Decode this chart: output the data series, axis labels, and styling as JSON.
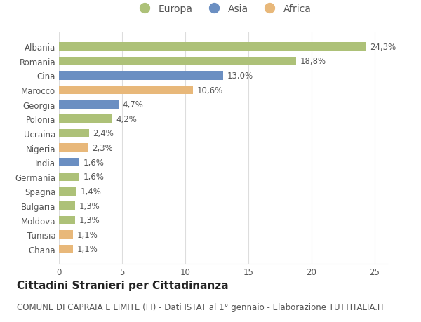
{
  "categories": [
    "Albania",
    "Romania",
    "Cina",
    "Marocco",
    "Georgia",
    "Polonia",
    "Ucraina",
    "Nigeria",
    "India",
    "Germania",
    "Spagna",
    "Bulgaria",
    "Moldova",
    "Tunisia",
    "Ghana"
  ],
  "values": [
    24.3,
    18.8,
    13.0,
    10.6,
    4.7,
    4.2,
    2.4,
    2.3,
    1.6,
    1.6,
    1.4,
    1.3,
    1.3,
    1.1,
    1.1
  ],
  "labels": [
    "24,3%",
    "18,8%",
    "13,0%",
    "10,6%",
    "4,7%",
    "4,2%",
    "2,4%",
    "2,3%",
    "1,6%",
    "1,6%",
    "1,4%",
    "1,3%",
    "1,3%",
    "1,1%",
    "1,1%"
  ],
  "continent": [
    "Europa",
    "Europa",
    "Asia",
    "Africa",
    "Asia",
    "Europa",
    "Europa",
    "Africa",
    "Asia",
    "Europa",
    "Europa",
    "Europa",
    "Europa",
    "Africa",
    "Africa"
  ],
  "colors": {
    "Europa": "#adc178",
    "Asia": "#6b8fc2",
    "Africa": "#e8b87a"
  },
  "legend_items": [
    "Europa",
    "Asia",
    "Africa"
  ],
  "title": "Cittadini Stranieri per Cittadinanza",
  "subtitle": "COMUNE DI CAPRAIA E LIMITE (FI) - Dati ISTAT al 1° gennaio - Elaborazione TUTTITALIA.IT",
  "xlim": [
    0,
    26
  ],
  "xticks": [
    0,
    5,
    10,
    15,
    20,
    25
  ],
  "background_color": "#ffffff",
  "grid_color": "#dddddd",
  "bar_height": 0.6,
  "title_fontsize": 11,
  "subtitle_fontsize": 8.5,
  "label_fontsize": 8.5,
  "tick_fontsize": 8.5,
  "legend_fontsize": 10
}
